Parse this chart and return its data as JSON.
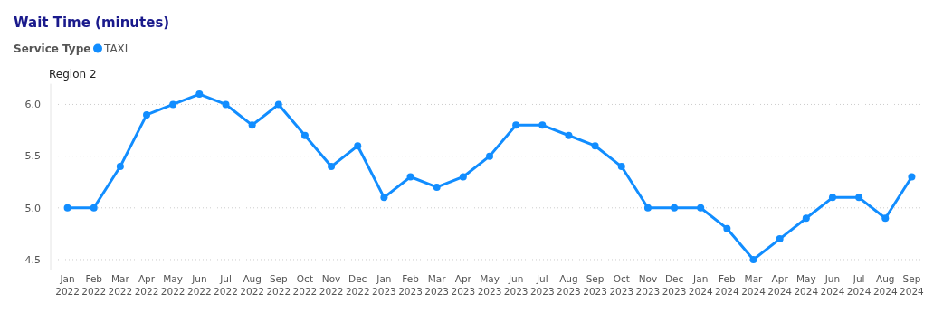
{
  "chart_data": {
    "type": "line",
    "title": "Wait Time (minutes)",
    "subtitle": "Region 2",
    "legend_title": "Service Type",
    "legend": "top left",
    "grid": "y",
    "marker": "circle",
    "line_style": "solid",
    "categories": [
      "Jan 2022",
      "Feb 2022",
      "Mar 2022",
      "Apr 2022",
      "May 2022",
      "Jun 2022",
      "Jul 2022",
      "Aug 2022",
      "Sep 2022",
      "Oct 2022",
      "Nov 2022",
      "Dec 2022",
      "Jan 2023",
      "Feb 2023",
      "Mar 2023",
      "Apr 2023",
      "May 2023",
      "Jun 2023",
      "Jul 2023",
      "Aug 2023",
      "Sep 2023",
      "Oct 2023",
      "Nov 2023",
      "Dec 2023",
      "Jan 2024",
      "Feb 2024",
      "Mar 2024",
      "Apr 2024",
      "May 2024",
      "Jun 2024",
      "Jul 2024",
      "Aug 2024",
      "Sep 2024"
    ],
    "ylim": [
      4.4,
      6.2
    ],
    "yticks": [
      {
        "value": 4.5,
        "label": "4.5"
      },
      {
        "value": 5,
        "label": "5.0"
      },
      {
        "value": 5.5,
        "label": "5.5"
      },
      {
        "value": 6,
        "label": "6.0"
      }
    ],
    "series": [
      {
        "name": "TAXI",
        "color": "#118dff",
        "values": [
          5.0,
          5.0,
          5.4,
          5.9,
          6.0,
          6.1,
          6.0,
          5.8,
          6.0,
          5.7,
          5.4,
          5.6,
          5.1,
          5.3,
          5.2,
          5.3,
          5.5,
          5.8,
          5.8,
          5.7,
          5.6,
          5.4,
          5.0,
          5.0,
          5.0,
          4.8,
          4.5,
          4.7,
          4.9,
          5.1,
          5.1,
          4.9,
          5.3
        ]
      }
    ]
  }
}
